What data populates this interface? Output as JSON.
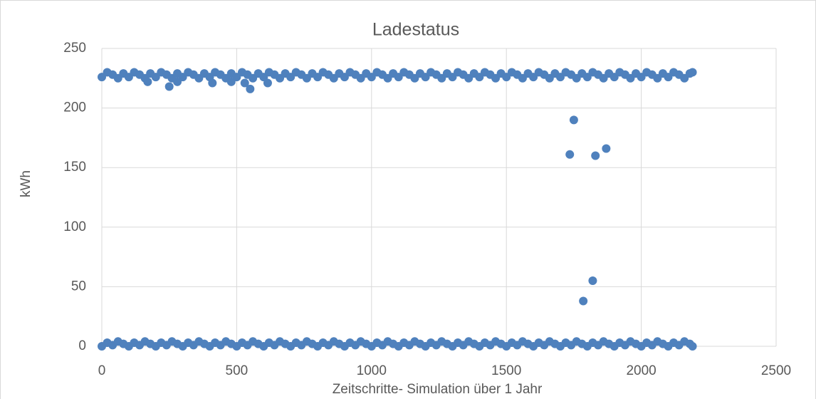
{
  "chart_data": {
    "type": "scatter",
    "title": "Ladestatus",
    "x_label": "Zeitschritte- Simulation über 1 Jahr",
    "y_label": "kWh",
    "xlim": [
      0,
      2500
    ],
    "xticks": [
      0,
      500,
      1000,
      1500,
      2000,
      2500
    ],
    "ylim": [
      0,
      250
    ],
    "yticks": [
      0,
      50,
      100,
      150,
      200,
      250
    ],
    "grid": true,
    "series": [
      {
        "color": "#4f81bd",
        "x": [
          0,
          20,
          40,
          60,
          80,
          100,
          120,
          140,
          160,
          180,
          200,
          220,
          240,
          260,
          280,
          300,
          320,
          340,
          360,
          380,
          400,
          420,
          440,
          460,
          480,
          500,
          520,
          540,
          560,
          580,
          600,
          620,
          640,
          660,
          680,
          700,
          720,
          740,
          760,
          780,
          800,
          820,
          840,
          860,
          880,
          900,
          920,
          940,
          960,
          980,
          1000,
          1020,
          1040,
          1060,
          1080,
          1100,
          1120,
          1140,
          1160,
          1180,
          1200,
          1220,
          1240,
          1260,
          1280,
          1300,
          1320,
          1340,
          1360,
          1380,
          1400,
          1420,
          1440,
          1460,
          1480,
          1500,
          1520,
          1540,
          1560,
          1580,
          1600,
          1620,
          1640,
          1660,
          1680,
          1700,
          1720,
          1740,
          1760,
          1780,
          1800,
          1820,
          1840,
          1860,
          1880,
          1900,
          1920,
          1940,
          1960,
          1980,
          2000,
          2020,
          2040,
          2060,
          2080,
          2100,
          2120,
          2140,
          2160,
          2180
        ],
        "values": [
          226,
          230,
          228,
          225,
          229,
          226,
          230,
          228,
          225,
          229,
          226,
          230,
          228,
          225,
          229,
          226,
          230,
          228,
          225,
          229,
          226,
          230,
          228,
          225,
          229,
          226,
          230,
          228,
          225,
          229,
          226,
          230,
          228,
          225,
          229,
          226,
          230,
          228,
          225,
          229,
          226,
          230,
          228,
          225,
          229,
          226,
          230,
          228,
          225,
          229,
          226,
          230,
          228,
          225,
          229,
          226,
          230,
          228,
          225,
          229,
          226,
          230,
          228,
          225,
          229,
          226,
          230,
          228,
          225,
          229,
          226,
          230,
          228,
          225,
          229,
          226,
          230,
          228,
          225,
          229,
          226,
          230,
          228,
          225,
          229,
          226,
          230,
          228,
          225,
          229,
          226,
          230,
          228,
          225,
          229,
          226,
          230,
          228,
          225,
          229,
          226,
          230,
          228,
          225,
          229,
          226,
          230,
          228,
          225,
          229
        ]
      },
      {
        "color": "#4f81bd",
        "x": [
          0,
          20,
          40,
          60,
          80,
          100,
          120,
          140,
          160,
          180,
          200,
          220,
          240,
          260,
          280,
          300,
          320,
          340,
          360,
          380,
          400,
          420,
          440,
          460,
          480,
          500,
          520,
          540,
          560,
          580,
          600,
          620,
          640,
          660,
          680,
          700,
          720,
          740,
          760,
          780,
          800,
          820,
          840,
          860,
          880,
          900,
          920,
          940,
          960,
          980,
          1000,
          1020,
          1040,
          1060,
          1080,
          1100,
          1120,
          1140,
          1160,
          1180,
          1200,
          1220,
          1240,
          1260,
          1280,
          1300,
          1320,
          1340,
          1360,
          1380,
          1400,
          1420,
          1440,
          1460,
          1480,
          1500,
          1520,
          1540,
          1560,
          1580,
          1600,
          1620,
          1640,
          1660,
          1680,
          1700,
          1720,
          1740,
          1760,
          1780,
          1800,
          1820,
          1840,
          1860,
          1880,
          1900,
          1920,
          1940,
          1960,
          1980,
          2000,
          2020,
          2040,
          2060,
          2080,
          2100,
          2120,
          2140,
          2160,
          2180
        ],
        "values": [
          0,
          3,
          1,
          4,
          2,
          0,
          3,
          1,
          4,
          2,
          0,
          3,
          1,
          4,
          2,
          0,
          3,
          1,
          4,
          2,
          0,
          3,
          1,
          4,
          2,
          0,
          3,
          1,
          4,
          2,
          0,
          3,
          1,
          4,
          2,
          0,
          3,
          1,
          4,
          2,
          0,
          3,
          1,
          4,
          2,
          0,
          3,
          1,
          4,
          2,
          0,
          3,
          1,
          4,
          2,
          0,
          3,
          1,
          4,
          2,
          0,
          3,
          1,
          4,
          2,
          0,
          3,
          1,
          4,
          2,
          0,
          3,
          1,
          4,
          2,
          0,
          3,
          1,
          4,
          2,
          0,
          3,
          1,
          4,
          2,
          0,
          3,
          1,
          4,
          2,
          0,
          3,
          1,
          4,
          2,
          0,
          3,
          1,
          4,
          2,
          0,
          3,
          1,
          4,
          2,
          0,
          3,
          1,
          4,
          2
        ]
      },
      {
        "color": "#4f81bd",
        "x": [
          170,
          250,
          280,
          410,
          480,
          530,
          550,
          615,
          1735,
          1750,
          1785,
          1820,
          1830,
          1870,
          2190,
          2190
        ],
        "values": [
          222,
          218,
          222,
          221,
          222,
          221,
          216,
          221,
          161,
          190,
          38,
          55,
          160,
          166,
          0,
          230
        ]
      }
    ]
  }
}
